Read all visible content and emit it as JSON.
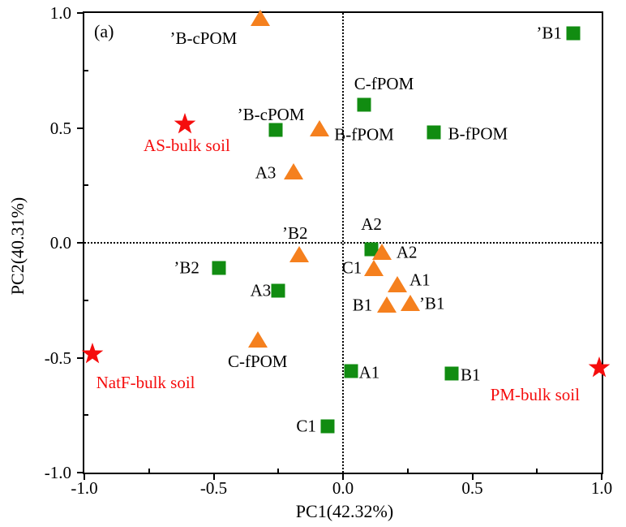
{
  "chart_data": {
    "type": "scatter",
    "panel_label": "(a)",
    "xlabel": "PC1(42.32%)",
    "ylabel": "PC2(40.31%)",
    "xlim": [
      -1.0,
      1.0
    ],
    "ylim": [
      -1.0,
      1.0
    ],
    "x_major_ticks": [
      -1.0,
      -0.5,
      0.0,
      0.5,
      1.0
    ],
    "x_tick_labels": [
      "-1.0",
      "-0.5",
      "0.0",
      "0.5",
      "1.0"
    ],
    "x_minor_ticks": [
      -0.75,
      -0.25,
      0.25,
      0.75
    ],
    "y_major_ticks": [
      1.0,
      0.5,
      0.0,
      -0.5,
      -1.0
    ],
    "y_tick_labels": [
      "1.0",
      "0.5",
      "0.0",
      "-0.5",
      "-1.0"
    ],
    "y_minor_ticks": [
      0.75,
      0.25,
      -0.25,
      -0.75
    ],
    "zero_lines": {
      "x": 0.0,
      "y": 0.0
    },
    "grid": "off",
    "legend": "none",
    "colors": {
      "square": "#118C11",
      "triangle": "#F5801E",
      "star": "#F50D0D"
    },
    "series": [
      {
        "name": "green-squares",
        "marker": "square",
        "color": "#118C11",
        "label_color": "#000000",
        "points": [
          {
            "x": 0.89,
            "y": 0.91,
            "label": "’B1",
            "label_pos": "left",
            "label_dx": 0,
            "label_dy": 0
          },
          {
            "x": 0.08,
            "y": 0.6,
            "label": "C-fPOM",
            "label_pos": "above",
            "label_dx": 25,
            "label_dy": -2
          },
          {
            "x": -0.26,
            "y": 0.49,
            "label": "’B-cPOM",
            "label_pos": "above",
            "label_dx": -6,
            "label_dy": 5
          },
          {
            "x": 0.35,
            "y": 0.48,
            "label": "B-fPOM",
            "label_pos": "right",
            "label_dx": 4,
            "label_dy": 2
          },
          {
            "x": 0.11,
            "y": -0.03,
            "label": "A2",
            "label_pos": "above",
            "label_dx": 0,
            "label_dy": -7
          },
          {
            "x": -0.48,
            "y": -0.11,
            "label": "’B2",
            "label_pos": "left",
            "label_dx": -10,
            "label_dy": 0
          },
          {
            "x": -0.25,
            "y": -0.21,
            "label": "A3",
            "label_pos": "left",
            "label_dx": 5,
            "label_dy": 0
          },
          {
            "x": 0.03,
            "y": -0.56,
            "label": "A1",
            "label_pos": "right",
            "label_dx": -4,
            "label_dy": 2
          },
          {
            "x": 0.42,
            "y": -0.57,
            "label": "B1",
            "label_pos": "right",
            "label_dx": -3,
            "label_dy": 2
          },
          {
            "x": -0.06,
            "y": -0.8,
            "label": "C1",
            "label_pos": "left",
            "label_dx": 0,
            "label_dy": 0
          }
        ]
      },
      {
        "name": "orange-triangles",
        "marker": "triangle",
        "color": "#F5801E",
        "label_color": "#000000",
        "points": [
          {
            "x": -0.32,
            "y": 0.98,
            "label": "’B-cPOM",
            "label_pos": "below",
            "label_dx": -70,
            "label_dy": 0
          },
          {
            "x": -0.09,
            "y": 0.5,
            "label": "B-fPOM",
            "label_pos": "right",
            "label_dx": 0,
            "label_dy": 8
          },
          {
            "x": -0.19,
            "y": 0.31,
            "label": "A3",
            "label_pos": "left",
            "label_dx": -4,
            "label_dy": 2
          },
          {
            "x": -0.17,
            "y": -0.05,
            "label": "’B2",
            "label_pos": "above",
            "label_dx": -5,
            "label_dy": 0
          },
          {
            "x": 0.15,
            "y": -0.04,
            "label": "A2",
            "label_pos": "right",
            "label_dx": 0,
            "label_dy": 1
          },
          {
            "x": 0.12,
            "y": -0.11,
            "label": "C1",
            "label_pos": "left",
            "label_dx": 3,
            "label_dy": 0
          },
          {
            "x": 0.21,
            "y": -0.18,
            "label": "A1",
            "label_pos": "right",
            "label_dx": -3,
            "label_dy": -5
          },
          {
            "x": 0.17,
            "y": -0.27,
            "label": "B1",
            "label_pos": "left",
            "label_dx": 0,
            "label_dy": 1
          },
          {
            "x": 0.26,
            "y": -0.26,
            "label": "’B1",
            "label_pos": "right",
            "label_dx": -7,
            "label_dy": 1
          },
          {
            "x": -0.33,
            "y": -0.42,
            "label": "C-fPOM",
            "label_pos": "below",
            "label_dx": 0,
            "label_dy": 2
          }
        ]
      },
      {
        "name": "red-stars-bulk-soil",
        "marker": "star",
        "color": "#F50D0D",
        "label_color": "#F50D0D",
        "points": [
          {
            "x": -0.61,
            "y": 0.51,
            "label": "AS-bulk soil",
            "label_pos": "below",
            "label_dx": 2,
            "label_dy": -4
          },
          {
            "x": -0.97,
            "y": -0.49,
            "label": "NatF-bulk soil",
            "label_pos": "below",
            "label_dx": 66,
            "label_dy": 5
          },
          {
            "x": 0.99,
            "y": -0.55,
            "label": "PM-bulk soil",
            "label_pos": "below",
            "label_dx": -79,
            "label_dy": 3
          }
        ]
      }
    ]
  }
}
